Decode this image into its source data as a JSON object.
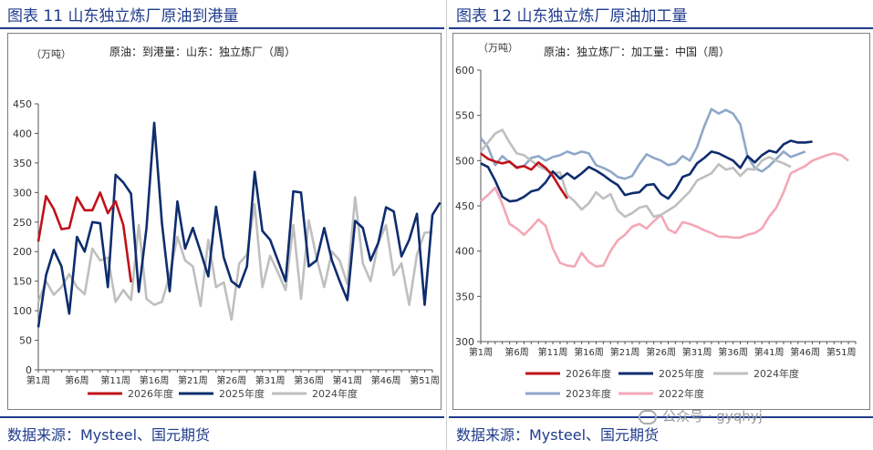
{
  "left": {
    "fig_title": "图表 11 山东独立炼厂原油到港量",
    "source": "数据来源：Mysteel、国元期货"
  },
  "right": {
    "fig_title": "图表 12 山东独立炼厂原油加工量",
    "source": "数据来源：Mysteel、国元期货"
  },
  "watermark": "公众号 · gyqhyj",
  "chart_data": [
    {
      "type": "line",
      "title": "原油：到港量：山东：独立炼厂（周）",
      "ylabel": "（万吨）",
      "ylim": [
        0,
        450
      ],
      "yticks": [
        0,
        50,
        100,
        150,
        200,
        250,
        300,
        350,
        400,
        450
      ],
      "xlim": [
        1,
        52
      ],
      "xtick_labels": [
        "第1周",
        "第6周",
        "第11周",
        "第16周",
        "第21周",
        "第26周",
        "第31周",
        "第36周",
        "第41周",
        "第46周",
        "第51周"
      ],
      "xtick_weeks": [
        1,
        6,
        11,
        16,
        21,
        26,
        31,
        36,
        41,
        46,
        51
      ],
      "grid": false,
      "legend_position": "bottom",
      "series": [
        {
          "name": "2026年度",
          "color": "#c0121a",
          "values": [
            217,
            294,
            272,
            238,
            240,
            292,
            270,
            270,
            300,
            265,
            285,
            245,
            148
          ]
        },
        {
          "name": "2025年度",
          "color": "#0e2d6e",
          "values": [
            72,
            160,
            203,
            175,
            95,
            225,
            200,
            250,
            248,
            140,
            330,
            317,
            298,
            132,
            240,
            418,
            248,
            133,
            285,
            205,
            240,
            200,
            158,
            276,
            190,
            150,
            140,
            175,
            335,
            235,
            220,
            185,
            150,
            302,
            300,
            175,
            185,
            240,
            185,
            150,
            118,
            252,
            240,
            185,
            215,
            275,
            268,
            192,
            220,
            264,
            110,
            262,
            283
          ]
        },
        {
          "name": "2024年度",
          "color": "#bfbfbf",
          "values": [
            115,
            150,
            127,
            140,
            162,
            140,
            128,
            205,
            185,
            190,
            115,
            135,
            118,
            245,
            120,
            110,
            115,
            160,
            225,
            185,
            175,
            108,
            220,
            140,
            148,
            85,
            180,
            195,
            280,
            140,
            193,
            165,
            135,
            245,
            120,
            253,
            190,
            140,
            200,
            185,
            145,
            292,
            180,
            150,
            215,
            245,
            160,
            180,
            110,
            195,
            232,
            233
          ]
        }
      ]
    },
    {
      "type": "line",
      "title": "原油：独立炼厂：加工量：中国（周）",
      "ylabel": "（万吨）",
      "ylim": [
        300,
        600
      ],
      "yticks": [
        300,
        350,
        400,
        450,
        500,
        550,
        600
      ],
      "xlim": [
        1,
        53
      ],
      "xtick_labels": [
        "第1周",
        "第6周",
        "第11周",
        "第16周",
        "第21周",
        "第26周",
        "第31周",
        "第36周",
        "第41周",
        "第46周",
        "第51周"
      ],
      "xtick_weeks": [
        1,
        6,
        11,
        16,
        21,
        26,
        31,
        36,
        41,
        46,
        51
      ],
      "grid": false,
      "legend_position": "bottom",
      "series": [
        {
          "name": "2026年度",
          "color": "#c0121a",
          "values": [
            508,
            502,
            499,
            497,
            499,
            492,
            494,
            490,
            498,
            492,
            483,
            470,
            458
          ]
        },
        {
          "name": "2025年度",
          "color": "#0e2d6e",
          "values": [
            497,
            493,
            478,
            460,
            455,
            456,
            460,
            466,
            468,
            476,
            488,
            480,
            486,
            480,
            486,
            493,
            489,
            484,
            478,
            473,
            462,
            464,
            465,
            473,
            474,
            463,
            458,
            468,
            482,
            485,
            497,
            503,
            510,
            508,
            504,
            500,
            492,
            505,
            498,
            506,
            511,
            509,
            518,
            522,
            520,
            520,
            521
          ]
        },
        {
          "name": "2024年度",
          "color": "#bfbfbf",
          "values": [
            510,
            520,
            530,
            534,
            520,
            508,
            506,
            500,
            494,
            490,
            486,
            487,
            462,
            455,
            446,
            453,
            465,
            458,
            463,
            445,
            438,
            442,
            448,
            450,
            438,
            440,
            445,
            450,
            458,
            466,
            478,
            482,
            486,
            496,
            490,
            492,
            483,
            491,
            490,
            500,
            504,
            500,
            497,
            493
          ]
        },
        {
          "name": "2023年度",
          "color": "#8fa7c8",
          "values": [
            525,
            515,
            495,
            505,
            498,
            493,
            494,
            503,
            505,
            500,
            504,
            506,
            510,
            507,
            510,
            508,
            495,
            492,
            488,
            482,
            480,
            483,
            496,
            507,
            503,
            500,
            495,
            497,
            505,
            500,
            515,
            538,
            557,
            552,
            556,
            552,
            540,
            505,
            492,
            488,
            494,
            502,
            510,
            504,
            507,
            510
          ]
        },
        {
          "name": "2022年度",
          "color": "#f4a7b5",
          "values": [
            455,
            462,
            470,
            452,
            430,
            425,
            418,
            426,
            435,
            428,
            403,
            387,
            384,
            383,
            398,
            388,
            383,
            384,
            400,
            412,
            418,
            427,
            430,
            425,
            433,
            440,
            424,
            420,
            432,
            430,
            427,
            423,
            420,
            416,
            416,
            415,
            415,
            418,
            420,
            425,
            438,
            448,
            465,
            486,
            490,
            494,
            500,
            503,
            506,
            508,
            506,
            500
          ]
        }
      ]
    }
  ]
}
